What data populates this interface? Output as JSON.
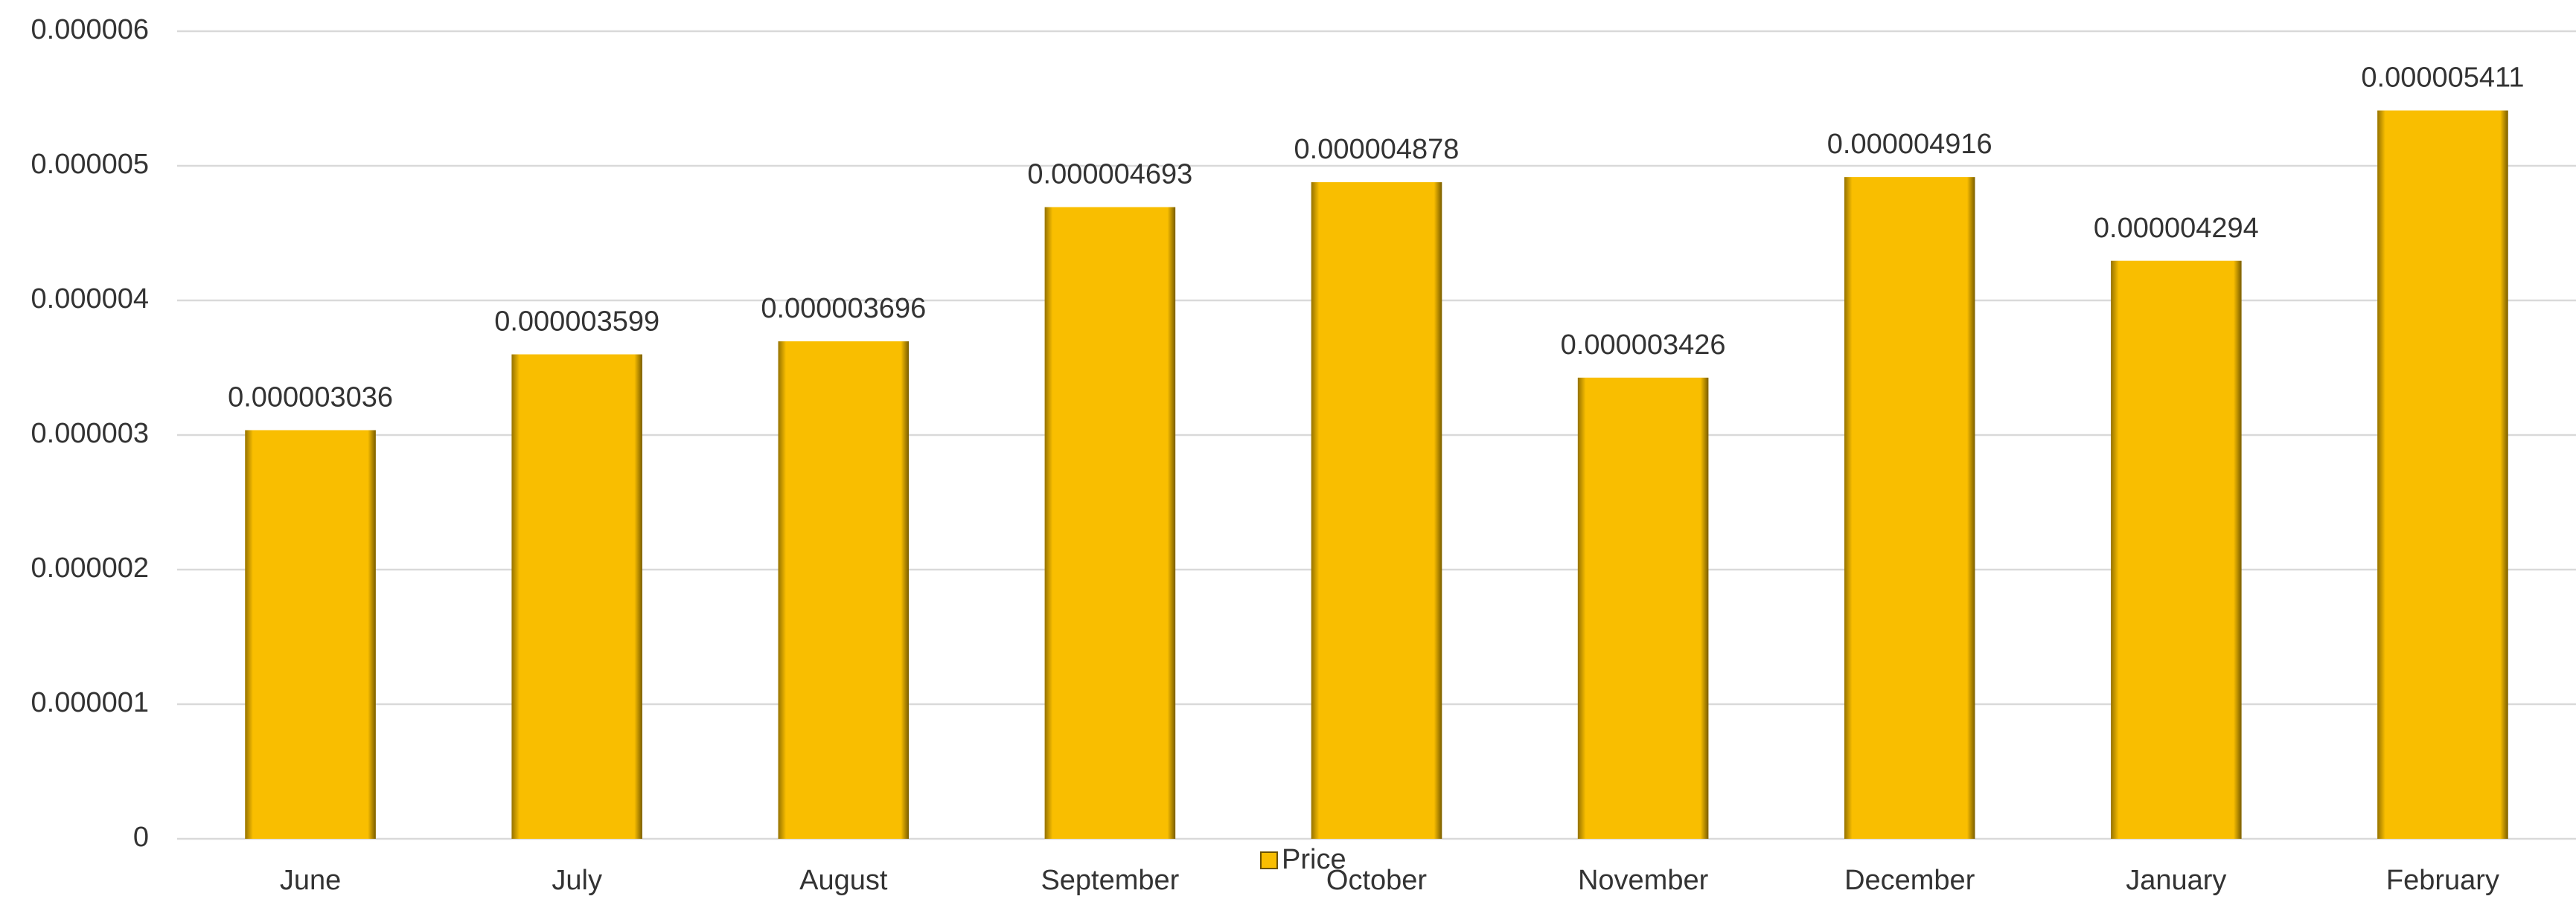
{
  "chart_data": {
    "type": "bar",
    "categories": [
      "June",
      "July",
      "August",
      "September",
      "October",
      "November",
      "December",
      "January",
      "February"
    ],
    "series": [
      {
        "name": "Price",
        "color": "#f9be00",
        "values": [
          3.036e-06,
          3.599e-06,
          3.696e-06,
          4.693e-06,
          4.878e-06,
          3.426e-06,
          4.916e-06,
          4.294e-06,
          5.411e-06
        ]
      }
    ],
    "ylim": [
      0,
      6e-06
    ],
    "yticks": [
      0,
      1e-06,
      2e-06,
      3e-06,
      4e-06,
      5e-06,
      6e-06
    ],
    "grid": true,
    "legend": "bottom"
  }
}
